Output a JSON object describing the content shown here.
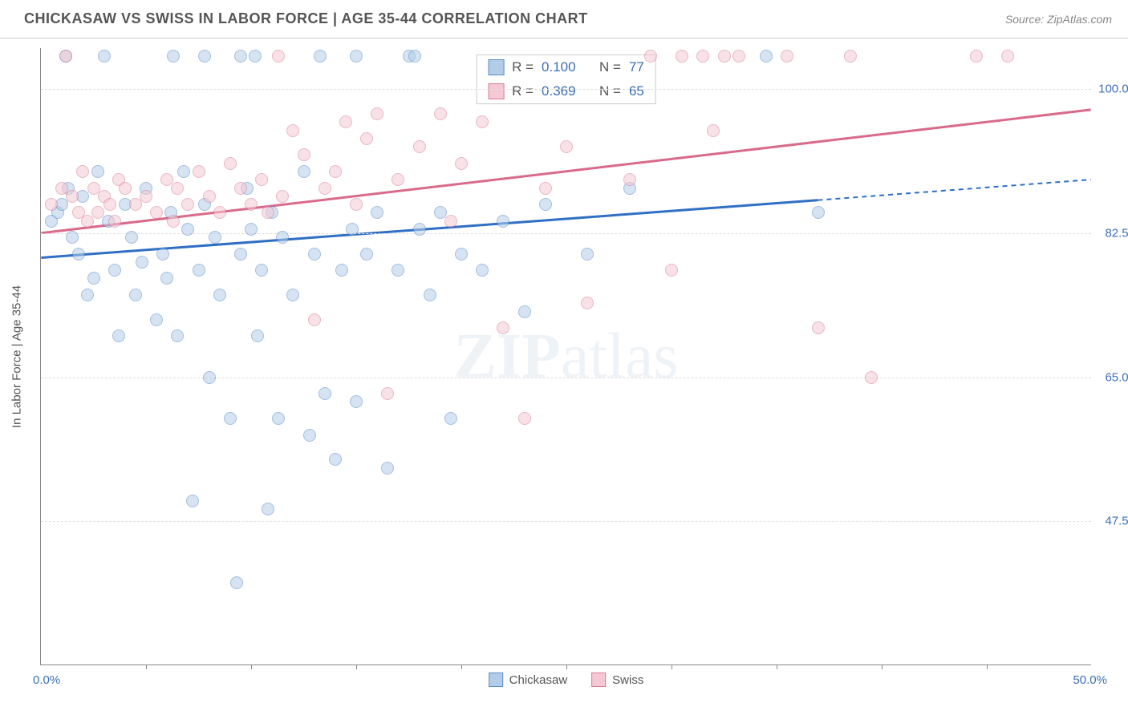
{
  "title": "CHICKASAW VS SWISS IN LABOR FORCE | AGE 35-44 CORRELATION CHART",
  "source": "Source: ZipAtlas.com",
  "y_axis_title": "In Labor Force | Age 35-44",
  "watermark_parts": {
    "bold": "ZIP",
    "light": "atlas"
  },
  "chart": {
    "type": "scatter",
    "xlim": [
      0,
      50
    ],
    "ylim": [
      30,
      105
    ],
    "x_min_label": "0.0%",
    "x_max_label": "50.0%",
    "x_tick_positions": [
      5,
      10,
      15,
      20,
      25,
      30,
      35,
      40,
      45
    ],
    "y_ticks": [
      {
        "value": 100.0,
        "label": "100.0%"
      },
      {
        "value": 82.5,
        "label": "82.5%"
      },
      {
        "value": 65.0,
        "label": "65.0%"
      },
      {
        "value": 47.5,
        "label": "47.5%"
      }
    ],
    "axis_label_color": "#3b6fb5",
    "background_color": "#ffffff",
    "grid_color": "#dddddd",
    "point_radius": 8,
    "series": [
      {
        "name": "Chickasaw",
        "fill_color": "#b3cde8",
        "stroke_color": "#5a8cc7",
        "line_color": "#2f6fc4",
        "r_value": "0.100",
        "n_value": "77",
        "trend": {
          "x1": 0,
          "y1": 79.5,
          "x2": 37,
          "y2": 86.5,
          "ext_x2": 50,
          "ext_y2": 89.0
        },
        "points": [
          [
            0.5,
            84
          ],
          [
            0.8,
            85
          ],
          [
            1.0,
            86
          ],
          [
            1.2,
            104
          ],
          [
            1.3,
            88
          ],
          [
            1.5,
            82
          ],
          [
            1.8,
            80
          ],
          [
            2.0,
            87
          ],
          [
            2.2,
            75
          ],
          [
            2.5,
            77
          ],
          [
            2.7,
            90
          ],
          [
            3.0,
            104
          ],
          [
            3.2,
            84
          ],
          [
            3.5,
            78
          ],
          [
            3.7,
            70
          ],
          [
            4.0,
            86
          ],
          [
            4.3,
            82
          ],
          [
            4.5,
            75
          ],
          [
            4.8,
            79
          ],
          [
            5.0,
            88
          ],
          [
            6.3,
            104
          ],
          [
            5.5,
            72
          ],
          [
            5.8,
            80
          ],
          [
            6.0,
            77
          ],
          [
            6.2,
            85
          ],
          [
            6.5,
            70
          ],
          [
            6.8,
            90
          ],
          [
            7.8,
            104
          ],
          [
            7.0,
            83
          ],
          [
            7.2,
            50
          ],
          [
            7.5,
            78
          ],
          [
            7.8,
            86
          ],
          [
            8.0,
            65
          ],
          [
            8.3,
            82
          ],
          [
            8.5,
            75
          ],
          [
            9.5,
            104
          ],
          [
            9.0,
            60
          ],
          [
            9.3,
            40
          ],
          [
            9.5,
            80
          ],
          [
            9.8,
            88
          ],
          [
            10.0,
            83
          ],
          [
            10.3,
            70
          ],
          [
            10.5,
            78
          ],
          [
            10.8,
            49
          ],
          [
            11.0,
            85
          ],
          [
            11.3,
            60
          ],
          [
            11.5,
            82
          ],
          [
            12.0,
            75
          ],
          [
            10.2,
            104
          ],
          [
            12.5,
            90
          ],
          [
            12.8,
            58
          ],
          [
            13.0,
            80
          ],
          [
            13.3,
            104
          ],
          [
            13.5,
            63
          ],
          [
            14.0,
            55
          ],
          [
            14.3,
            78
          ],
          [
            14.8,
            83
          ],
          [
            15.0,
            62
          ],
          [
            15.5,
            80
          ],
          [
            16.0,
            85
          ],
          [
            15.0,
            104
          ],
          [
            16.5,
            54
          ],
          [
            17.0,
            78
          ],
          [
            17.5,
            104
          ],
          [
            18.0,
            83
          ],
          [
            18.5,
            75
          ],
          [
            17.8,
            104
          ],
          [
            19.0,
            85
          ],
          [
            19.5,
            60
          ],
          [
            20.0,
            80
          ],
          [
            21.0,
            78
          ],
          [
            22.0,
            84
          ],
          [
            23.0,
            73
          ],
          [
            24.0,
            86
          ],
          [
            26.0,
            80
          ],
          [
            28.0,
            88
          ],
          [
            34.5,
            104
          ],
          [
            37.0,
            85
          ]
        ]
      },
      {
        "name": "Swiss",
        "fill_color": "#f4c9d4",
        "stroke_color": "#d97c96",
        "line_color": "#d96a8a",
        "r_value": "0.369",
        "n_value": "65",
        "trend": {
          "x1": 0,
          "y1": 82.5,
          "x2": 50,
          "y2": 97.5
        },
        "points": [
          [
            0.5,
            86
          ],
          [
            1.0,
            88
          ],
          [
            1.2,
            104
          ],
          [
            1.5,
            87
          ],
          [
            1.8,
            85
          ],
          [
            2.0,
            90
          ],
          [
            2.2,
            84
          ],
          [
            2.5,
            88
          ],
          [
            2.7,
            85
          ],
          [
            3.0,
            87
          ],
          [
            3.3,
            86
          ],
          [
            3.5,
            84
          ],
          [
            3.7,
            89
          ],
          [
            4.0,
            88
          ],
          [
            4.5,
            86
          ],
          [
            5.0,
            87
          ],
          [
            5.5,
            85
          ],
          [
            6.0,
            89
          ],
          [
            6.3,
            84
          ],
          [
            6.5,
            88
          ],
          [
            7.0,
            86
          ],
          [
            7.5,
            90
          ],
          [
            8.0,
            87
          ],
          [
            8.5,
            85
          ],
          [
            9.0,
            91
          ],
          [
            9.5,
            88
          ],
          [
            10.0,
            86
          ],
          [
            10.5,
            89
          ],
          [
            10.8,
            85
          ],
          [
            11.3,
            104
          ],
          [
            11.5,
            87
          ],
          [
            12.0,
            95
          ],
          [
            12.5,
            92
          ],
          [
            13.0,
            72
          ],
          [
            13.5,
            88
          ],
          [
            14.0,
            90
          ],
          [
            14.5,
            96
          ],
          [
            15.0,
            86
          ],
          [
            15.5,
            94
          ],
          [
            16.0,
            97
          ],
          [
            16.5,
            63
          ],
          [
            17.0,
            89
          ],
          [
            18.0,
            93
          ],
          [
            19.0,
            97
          ],
          [
            19.5,
            84
          ],
          [
            20.0,
            91
          ],
          [
            21.0,
            96
          ],
          [
            22.0,
            71
          ],
          [
            23.0,
            60
          ],
          [
            24.0,
            88
          ],
          [
            25.0,
            93
          ],
          [
            26.0,
            74
          ],
          [
            28.0,
            89
          ],
          [
            29.0,
            104
          ],
          [
            30.0,
            78
          ],
          [
            30.5,
            104
          ],
          [
            31.5,
            104
          ],
          [
            32.0,
            95
          ],
          [
            32.5,
            104
          ],
          [
            33.2,
            104
          ],
          [
            35.5,
            104
          ],
          [
            37.0,
            71
          ],
          [
            38.5,
            104
          ],
          [
            39.5,
            65
          ],
          [
            44.5,
            104
          ],
          [
            46.0,
            104
          ]
        ]
      }
    ]
  },
  "legend": {
    "r_prefix": "R =",
    "n_prefix": "N ="
  }
}
